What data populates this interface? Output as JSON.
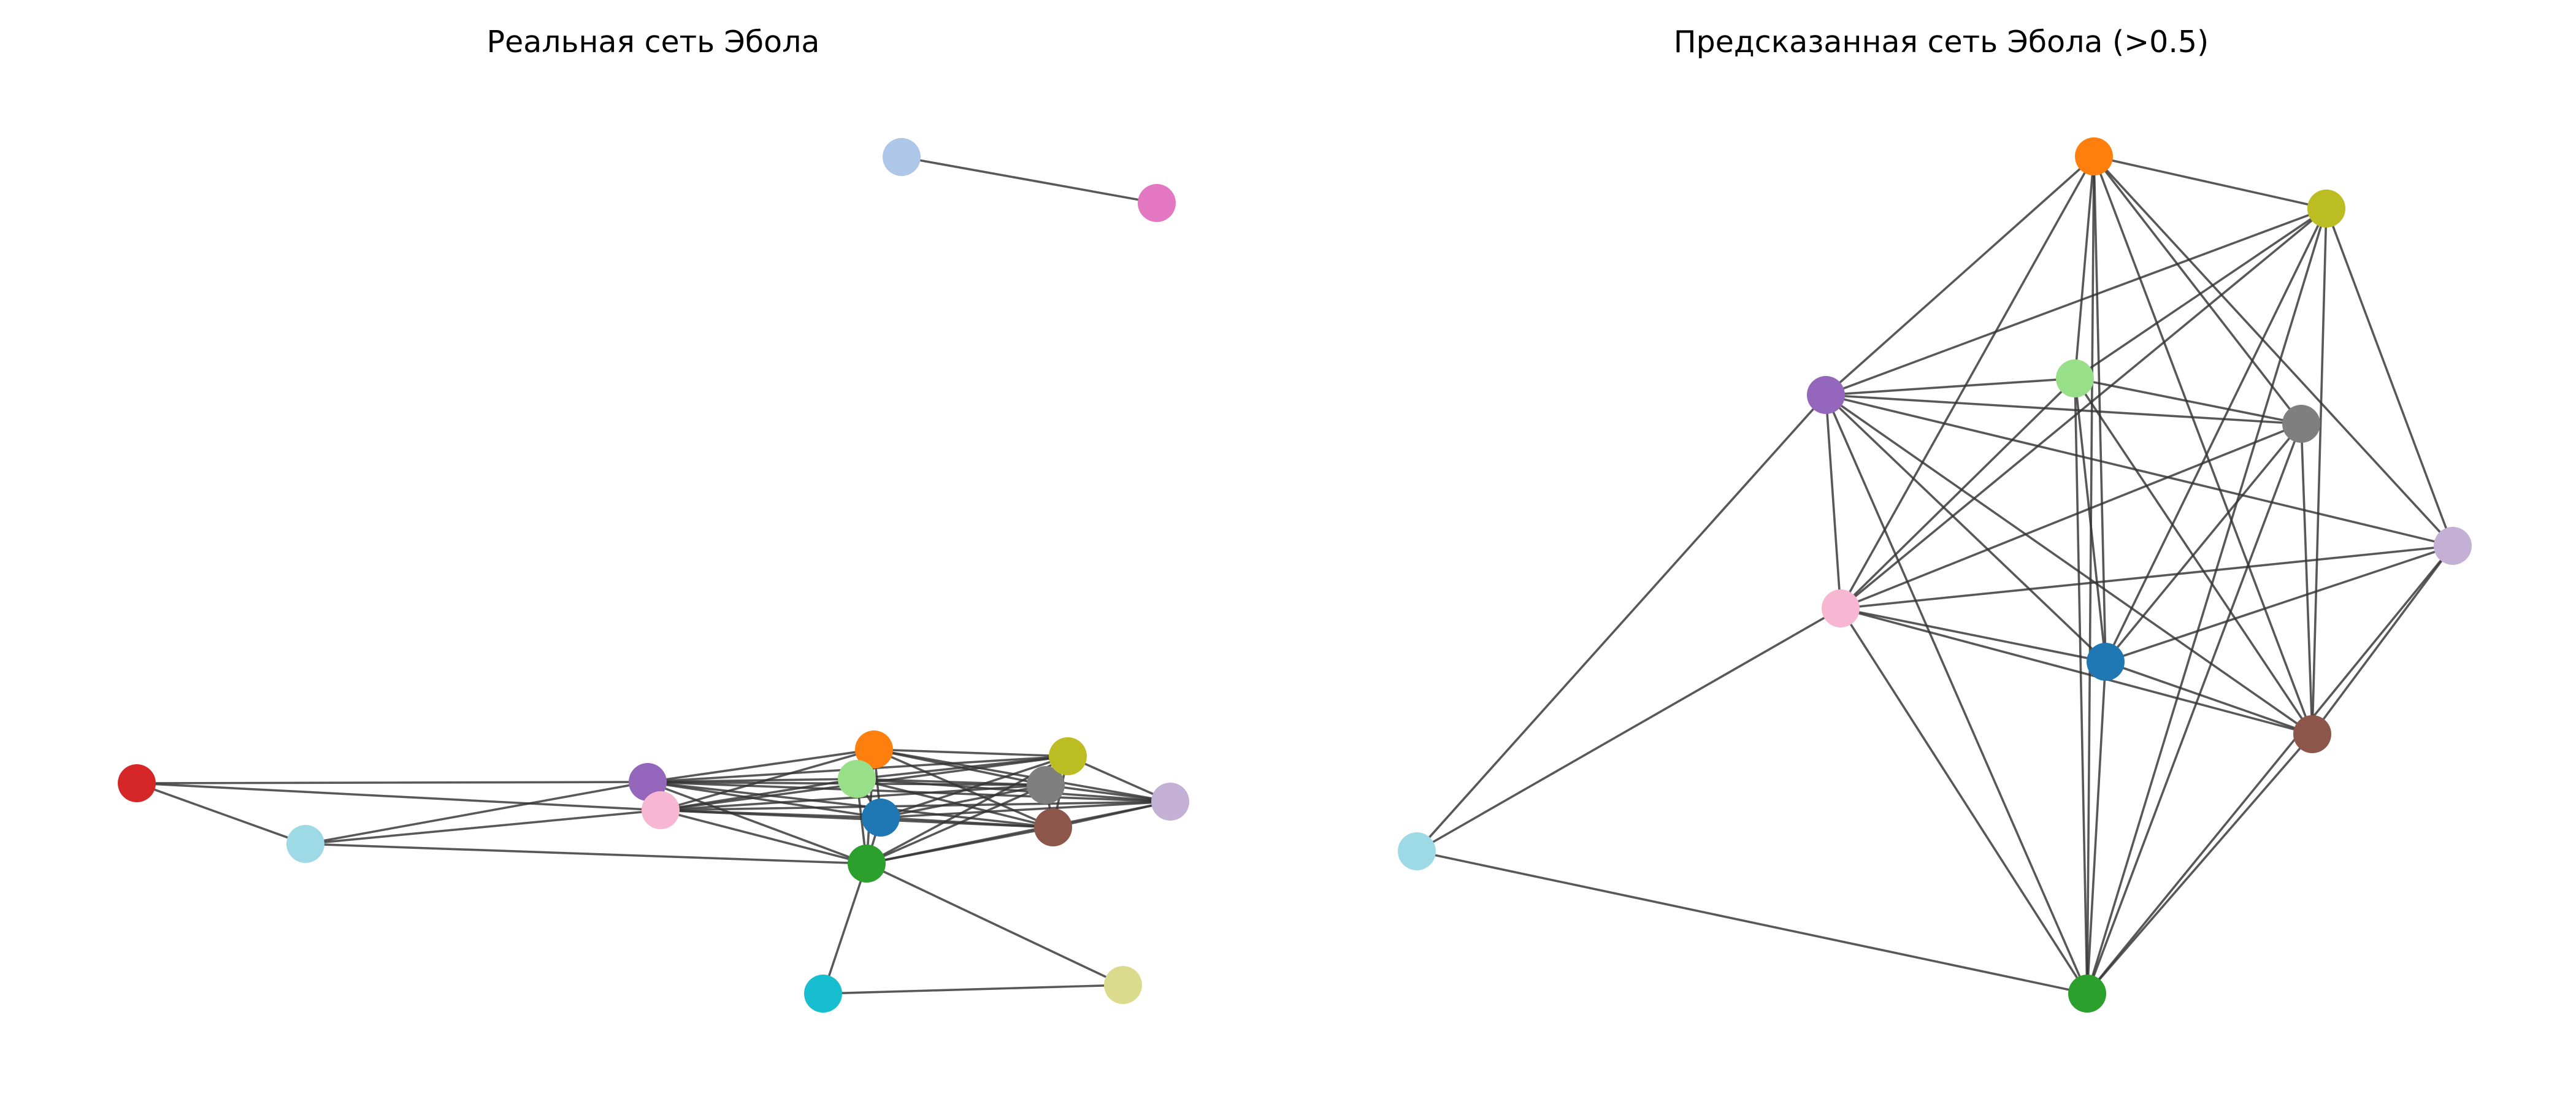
{
  "panels": [
    {
      "title": "Реальная сеть Эбола",
      "nodes": [
        {
          "id": "n0",
          "color": "#1f77b4"
        },
        {
          "id": "n1",
          "color": "#ff7f0e"
        },
        {
          "id": "n2",
          "color": "#2ca02c"
        },
        {
          "id": "n3",
          "color": "#d62728"
        },
        {
          "id": "n4",
          "color": "#9467bd"
        },
        {
          "id": "n5",
          "color": "#8c564b"
        },
        {
          "id": "n6",
          "color": "#f7b6d2"
        },
        {
          "id": "n7",
          "color": "#7f7f7f"
        },
        {
          "id": "n8",
          "color": "#bcbd22"
        },
        {
          "id": "n9",
          "color": "#17becf"
        },
        {
          "id": "n10",
          "color": "#aec7e8"
        },
        {
          "id": "n11",
          "color": "#98df8a"
        },
        {
          "id": "n12",
          "color": "#c5b0d5"
        },
        {
          "id": "n13",
          "color": "#e377c2"
        },
        {
          "id": "n14",
          "color": "#dbdb8d"
        },
        {
          "id": "n15",
          "color": "#9edae5"
        }
      ],
      "edges": [
        [
          "n10",
          "n13"
        ],
        [
          "n3",
          "n4"
        ],
        [
          "n3",
          "n15"
        ],
        [
          "n3",
          "n6"
        ],
        [
          "n15",
          "n6"
        ],
        [
          "n15",
          "n2"
        ],
        [
          "n15",
          "n4"
        ],
        [
          "n9",
          "n14"
        ],
        [
          "n9",
          "n2"
        ],
        [
          "n2",
          "n14"
        ],
        [
          "n4",
          "n1"
        ],
        [
          "n4",
          "n11"
        ],
        [
          "n4",
          "n0"
        ],
        [
          "n4",
          "n2"
        ],
        [
          "n4",
          "n7"
        ],
        [
          "n4",
          "n8"
        ],
        [
          "n4",
          "n5"
        ],
        [
          "n4",
          "n12"
        ],
        [
          "n4",
          "n6"
        ],
        [
          "n6",
          "n1"
        ],
        [
          "n6",
          "n11"
        ],
        [
          "n6",
          "n0"
        ],
        [
          "n6",
          "n2"
        ],
        [
          "n6",
          "n7"
        ],
        [
          "n6",
          "n8"
        ],
        [
          "n6",
          "n5"
        ],
        [
          "n6",
          "n12"
        ],
        [
          "n1",
          "n8"
        ],
        [
          "n1",
          "n7"
        ],
        [
          "n1",
          "n12"
        ],
        [
          "n1",
          "n5"
        ],
        [
          "n1",
          "n2"
        ],
        [
          "n1",
          "n0"
        ],
        [
          "n1",
          "n11"
        ],
        [
          "n11",
          "n8"
        ],
        [
          "n11",
          "n7"
        ],
        [
          "n11",
          "n12"
        ],
        [
          "n11",
          "n5"
        ],
        [
          "n11",
          "n2"
        ],
        [
          "n11",
          "n0"
        ],
        [
          "n0",
          "n8"
        ],
        [
          "n0",
          "n7"
        ],
        [
          "n0",
          "n12"
        ],
        [
          "n0",
          "n5"
        ],
        [
          "n0",
          "n2"
        ],
        [
          "n2",
          "n8"
        ],
        [
          "n2",
          "n7"
        ],
        [
          "n2",
          "n12"
        ],
        [
          "n2",
          "n5"
        ],
        [
          "n8",
          "n12"
        ],
        [
          "n8",
          "n7"
        ],
        [
          "n8",
          "n5"
        ],
        [
          "n7",
          "n12"
        ],
        [
          "n7",
          "n5"
        ],
        [
          "n5",
          "n12"
        ]
      ]
    },
    {
      "title": "Предсказанная сеть Эбола (>0.5)",
      "nodes": [
        {
          "id": "n0",
          "color": "#1f77b4"
        },
        {
          "id": "n1",
          "color": "#ff7f0e"
        },
        {
          "id": "n2",
          "color": "#2ca02c"
        },
        {
          "id": "n4",
          "color": "#9467bd"
        },
        {
          "id": "n5",
          "color": "#8c564b"
        },
        {
          "id": "n6",
          "color": "#f7b6d2"
        },
        {
          "id": "n7",
          "color": "#7f7f7f"
        },
        {
          "id": "n8",
          "color": "#bcbd22"
        },
        {
          "id": "n11",
          "color": "#98df8a"
        },
        {
          "id": "n12",
          "color": "#c5b0d5"
        },
        {
          "id": "n15",
          "color": "#9edae5"
        }
      ],
      "edges": [
        [
          "n15",
          "n4"
        ],
        [
          "n15",
          "n6"
        ],
        [
          "n15",
          "n2"
        ],
        [
          "n1",
          "n8"
        ],
        [
          "n1",
          "n4"
        ],
        [
          "n1",
          "n6"
        ],
        [
          "n1",
          "n11"
        ],
        [
          "n1",
          "n0"
        ],
        [
          "n1",
          "n2"
        ],
        [
          "n1",
          "n7"
        ],
        [
          "n1",
          "n12"
        ],
        [
          "n1",
          "n5"
        ],
        [
          "n8",
          "n4"
        ],
        [
          "n8",
          "n6"
        ],
        [
          "n8",
          "n11"
        ],
        [
          "n8",
          "n0"
        ],
        [
          "n8",
          "n2"
        ],
        [
          "n8",
          "n12"
        ],
        [
          "n8",
          "n5"
        ],
        [
          "n4",
          "n11"
        ],
        [
          "n4",
          "n7"
        ],
        [
          "n4",
          "n12"
        ],
        [
          "n4",
          "n0"
        ],
        [
          "n4",
          "n5"
        ],
        [
          "n4",
          "n6"
        ],
        [
          "n4",
          "n2"
        ],
        [
          "n11",
          "n7"
        ],
        [
          "n11",
          "n6"
        ],
        [
          "n11",
          "n0"
        ],
        [
          "n11",
          "n2"
        ],
        [
          "n11",
          "n5"
        ],
        [
          "n7",
          "n6"
        ],
        [
          "n7",
          "n0"
        ],
        [
          "n7",
          "n2"
        ],
        [
          "n7",
          "n5"
        ],
        [
          "n12",
          "n6"
        ],
        [
          "n12",
          "n0"
        ],
        [
          "n12",
          "n2"
        ],
        [
          "n12",
          "n5"
        ],
        [
          "n6",
          "n0"
        ],
        [
          "n6",
          "n5"
        ],
        [
          "n6",
          "n2"
        ],
        [
          "n0",
          "n2"
        ],
        [
          "n0",
          "n5"
        ],
        [
          "n2",
          "n5"
        ]
      ]
    }
  ]
}
